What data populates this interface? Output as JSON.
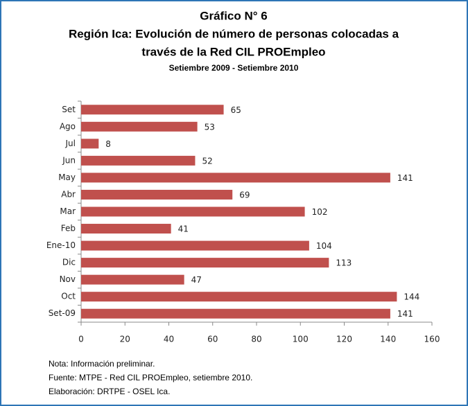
{
  "chart_data": {
    "type": "hbar",
    "title": [
      "Gráfico N° 6",
      "Región Ica: Evolución de número de personas colocadas a",
      "través de la Red CIL PROEmpleo"
    ],
    "subtitle": "Setiembre 2009 - Setiembre 2010",
    "categories": [
      "Set-09",
      "Oct",
      "Nov",
      "Dic",
      "Ene-10",
      "Feb",
      "Mar",
      "Abr",
      "May",
      "Jun",
      "Jul",
      "Ago",
      "Set"
    ],
    "values": [
      141,
      144,
      47,
      113,
      104,
      41,
      102,
      69,
      141,
      52,
      8,
      53,
      65
    ],
    "color": "#c0504d",
    "xlim": [
      0,
      160
    ],
    "xticks": [
      0,
      20,
      40,
      60,
      80,
      100,
      120,
      140,
      160
    ],
    "grid": false,
    "notes": [
      "Nota: Información preliminar.",
      "Fuente: MTPE - Red CIL PROEmpleo, setiembre 2010.",
      "Elaboración: DRTPE - OSEL Ica."
    ]
  }
}
